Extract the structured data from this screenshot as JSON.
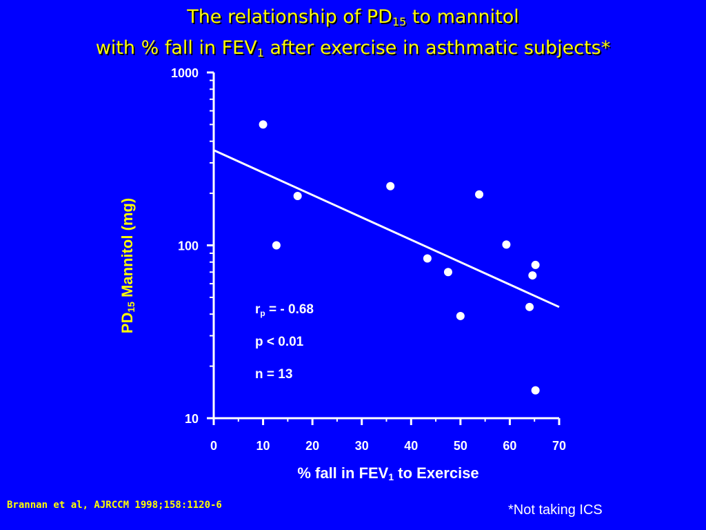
{
  "title": {
    "line1_pre": "The relationship of PD",
    "line1_sub": "15",
    "line1_post": " to mannitol",
    "line2_pre": "with % fall in FEV",
    "line2_sub": "1",
    "line2_post": " after exercise in asthmatic subjects*"
  },
  "stats": {
    "r_symbol": "r",
    "r_sub": "p",
    "r_value": " = - 0.68",
    "p_text": "p < 0.01",
    "n_text": "n = 13"
  },
  "citation": "Brannan et al, AJRCCM 1998;158:1120-6",
  "note": "*Not taking ICS",
  "colors": {
    "background": "#0000ff",
    "title": "#ffff00",
    "axis": "#ffffff",
    "points": "#ffffff",
    "ylabel": "#ffff00"
  },
  "chart_data": {
    "type": "scatter",
    "xlabel_pre": "% fall in FEV",
    "xlabel_sub": "1",
    "xlabel_post": " to Exercise",
    "ylabel_pre": "PD",
    "ylabel_sub": "15",
    "ylabel_post": " Mannitol (mg)",
    "xlim": [
      0,
      70
    ],
    "ylim": [
      10,
      1000
    ],
    "yscale": "log",
    "xticks": [
      "0",
      "10",
      "20",
      "30",
      "40",
      "50",
      "60",
      "70"
    ],
    "yticks": [
      "10",
      "100",
      "1000"
    ],
    "grid": false,
    "points": [
      {
        "x": 10,
        "y": 500
      },
      {
        "x": 12.7,
        "y": 100
      },
      {
        "x": 17,
        "y": 193
      },
      {
        "x": 35.8,
        "y": 220
      },
      {
        "x": 43.3,
        "y": 84
      },
      {
        "x": 47.5,
        "y": 70
      },
      {
        "x": 50,
        "y": 39
      },
      {
        "x": 53.8,
        "y": 197
      },
      {
        "x": 59.3,
        "y": 101
      },
      {
        "x": 64,
        "y": 44
      },
      {
        "x": 64.6,
        "y": 67
      },
      {
        "x": 65.2,
        "y": 77
      },
      {
        "x": 65.2,
        "y": 14.5
      }
    ],
    "regression_line": {
      "x": [
        0,
        70
      ],
      "y": [
        355,
        44
      ]
    }
  }
}
